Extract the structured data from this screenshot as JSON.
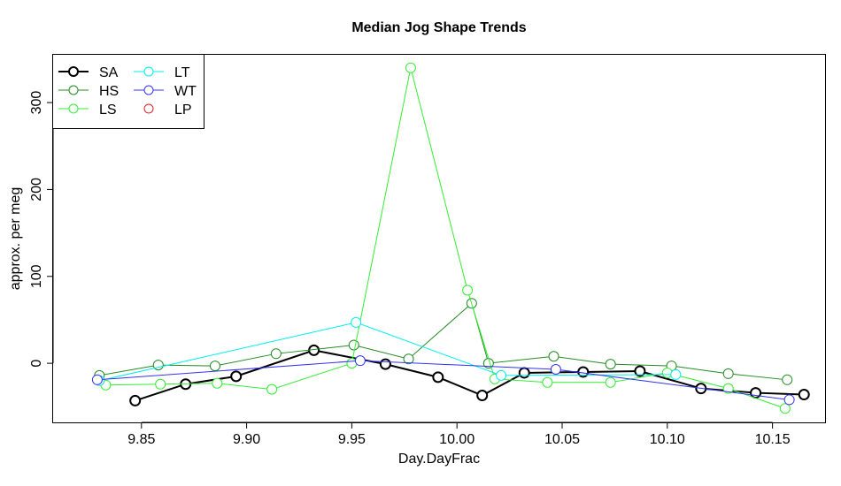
{
  "chart_data": {
    "type": "line",
    "title": "Median Jog Shape Trends",
    "xlabel": "Day.DayFrac",
    "ylabel": "approx. per meg",
    "xlim": [
      9.808,
      10.175
    ],
    "ylim": [
      -68,
      355
    ],
    "xticks": [
      9.85,
      9.9,
      9.95,
      10.0,
      10.05,
      10.1,
      10.15
    ],
    "xtick_labels": [
      "9.85",
      "9.90",
      "9.95",
      "10.00",
      "10.05",
      "10.10",
      "10.15"
    ],
    "yticks": [
      0,
      100,
      200,
      300
    ],
    "ytick_labels": [
      "0",
      "100",
      "200",
      "300"
    ],
    "legend_position": "top-left",
    "series": [
      {
        "name": "SA",
        "color": "#000000",
        "line_width": 2,
        "x": [
          9.847,
          9.871,
          9.895,
          9.932,
          9.966,
          9.991,
          10.012,
          10.032,
          10.06,
          10.087,
          10.116,
          10.142,
          10.165
        ],
        "y": [
          -43,
          -24,
          -15,
          15,
          -1,
          -16,
          -37,
          -11,
          -10,
          -9,
          -29,
          -34,
          -36
        ]
      },
      {
        "name": "HS",
        "color": "#228B22",
        "line_width": 1,
        "x": [
          9.83,
          9.858,
          9.885,
          9.914,
          9.951,
          9.977,
          10.007,
          10.015,
          10.046,
          10.073,
          10.102,
          10.129,
          10.157
        ],
        "y": [
          -14,
          -2,
          -3,
          11,
          21,
          5,
          69,
          0,
          8,
          -1,
          -3,
          -12,
          -19
        ]
      },
      {
        "name": "LS",
        "color": "#33EE33",
        "line_width": 1,
        "x": [
          9.833,
          9.859,
          9.886,
          9.912,
          9.95,
          9.978,
          10.005,
          10.018,
          10.043,
          10.073,
          10.1,
          10.129,
          10.156
        ],
        "y": [
          -25,
          -24,
          -23,
          -30,
          0,
          340,
          84,
          -18,
          -22,
          -22,
          -11,
          -29,
          -52
        ]
      },
      {
        "name": "LT",
        "color": "#00EEEE",
        "line_width": 1,
        "x": [
          9.83,
          9.952,
          10.021,
          10.104
        ],
        "y": [
          -20,
          47,
          -14,
          -13
        ]
      },
      {
        "name": "WT",
        "color": "#3333EE",
        "line_width": 1,
        "x": [
          9.829,
          9.954,
          10.047,
          10.158
        ],
        "y": [
          -19,
          3,
          -7,
          -42
        ]
      },
      {
        "name": "LP",
        "color": "#DD2222",
        "line_width": 1,
        "x": [],
        "y": []
      }
    ]
  }
}
